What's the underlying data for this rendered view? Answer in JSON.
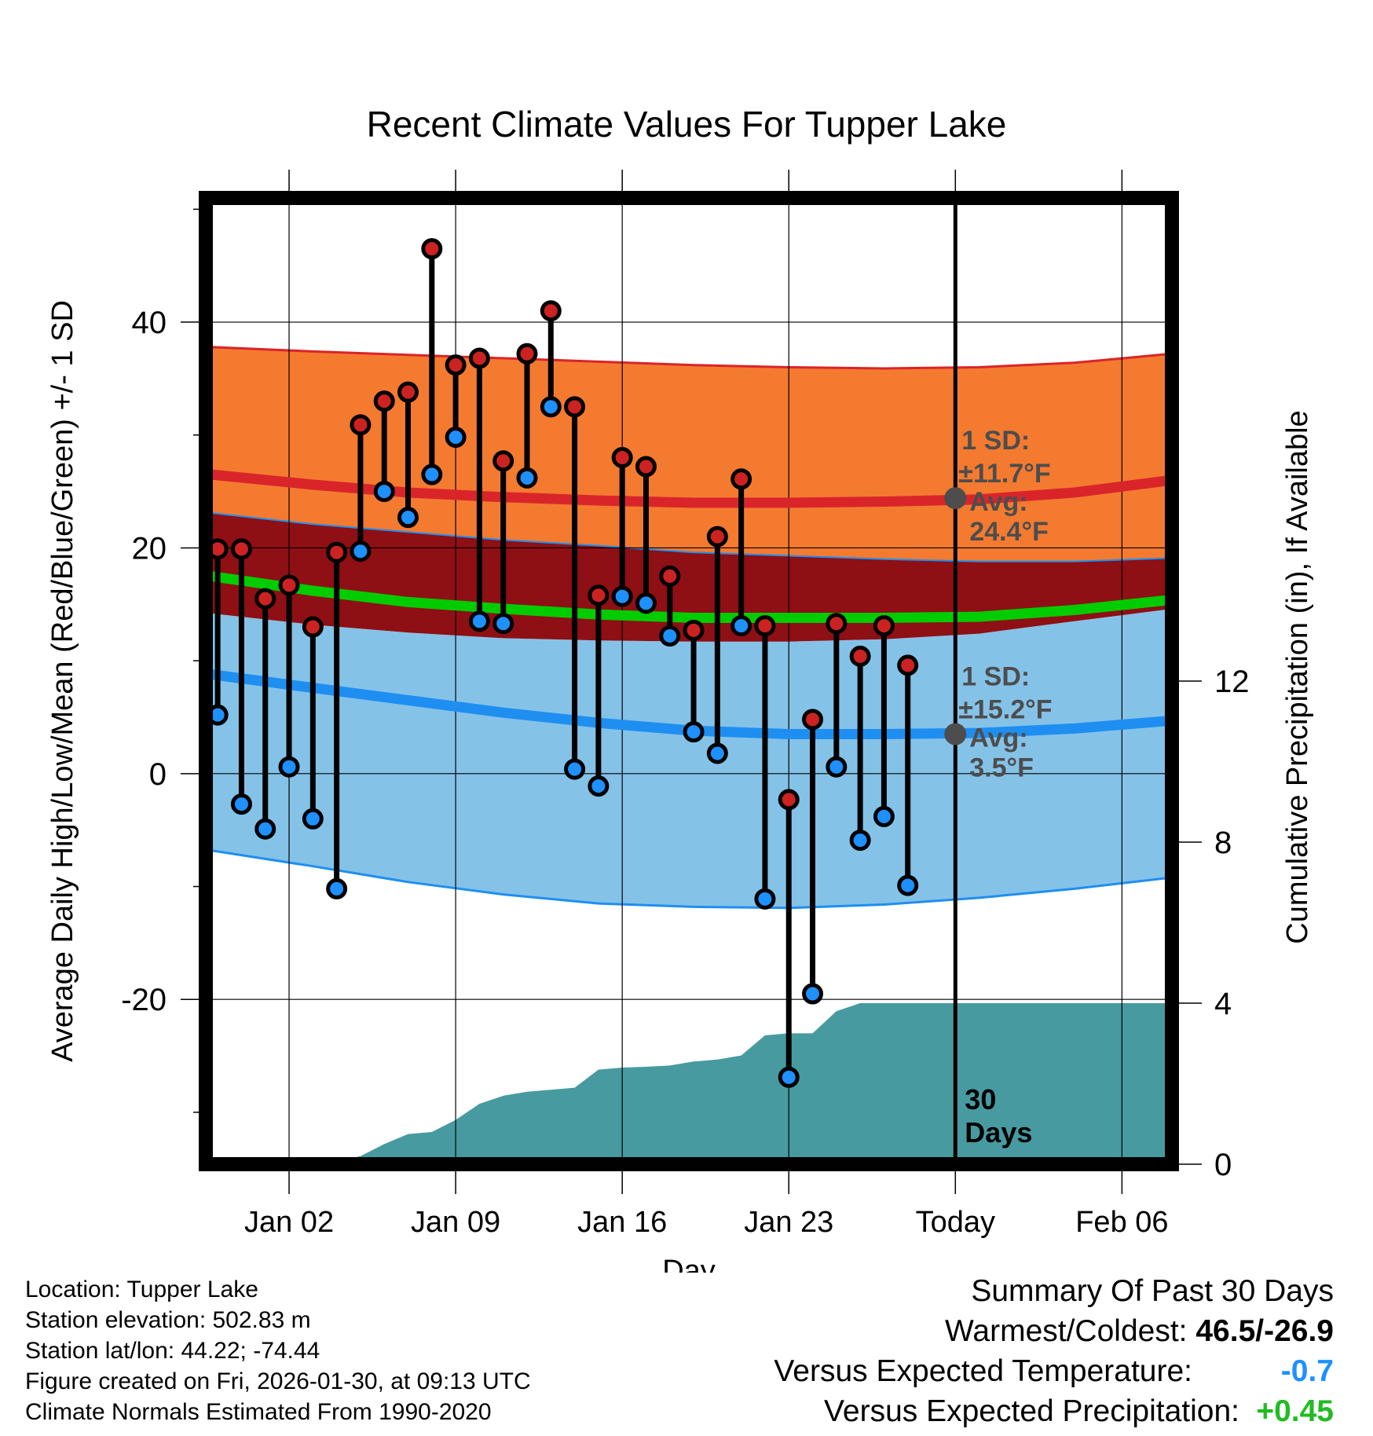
{
  "chart_data": {
    "type": "line",
    "title": "Recent Climate Values For Tupper Lake",
    "xlabel": "Day",
    "ylabel": "Average Daily High/Low/Mean (Red/Blue/Green) +/- 1 SD",
    "y2label": "Cumulative Precipitation (in), If Available",
    "xlim": [
      -2.5,
      38.1
    ],
    "ylim": [
      -34.6,
      51.0
    ],
    "y2lim": [
      0,
      24
    ],
    "x_ticks": [
      {
        "x": 1,
        "label": "Jan 02"
      },
      {
        "x": 8,
        "label": "Jan 09"
      },
      {
        "x": 15,
        "label": "Jan 16"
      },
      {
        "x": 22,
        "label": "Jan 23"
      },
      {
        "x": 29,
        "label": "Today"
      },
      {
        "x": 36,
        "label": "Feb 06"
      }
    ],
    "y_ticks": [
      -20,
      0,
      20,
      40
    ],
    "y2_ticks": [
      0,
      4,
      8,
      12
    ],
    "grid": true,
    "today_x": 29,
    "days_label_line1": "30",
    "days_label_line2": "Days",
    "normal_x": [
      -2.3,
      2,
      6,
      10,
      14,
      18,
      22,
      26,
      30,
      34,
      38.1
    ],
    "normal_high": [
      26.5,
      25.6,
      24.9,
      24.5,
      24.2,
      24.0,
      24.0,
      24.1,
      24.3,
      24.9,
      26.0
    ],
    "normal_high_upper": [
      37.8,
      37.4,
      37.1,
      36.8,
      36.5,
      36.2,
      36.0,
      35.9,
      36.0,
      36.4,
      37.2
    ],
    "normal_high_lower": [
      23.1,
      22.1,
      21.4,
      20.7,
      20.2,
      19.6,
      19.3,
      19.0,
      18.8,
      18.8,
      19.1
    ],
    "normal_mean": [
      17.5,
      16.2,
      15.2,
      14.6,
      14.1,
      13.8,
      13.8,
      13.8,
      13.9,
      14.5,
      15.4
    ],
    "normal_low": [
      8.8,
      7.6,
      6.5,
      5.4,
      4.5,
      3.8,
      3.5,
      3.5,
      3.6,
      4.0,
      4.7
    ],
    "normal_low_upper": [
      14.2,
      13.2,
      12.5,
      12.0,
      11.8,
      11.7,
      11.7,
      11.9,
      12.4,
      13.5,
      14.6
    ],
    "normal_low_lower": [
      -6.8,
      -8.2,
      -9.6,
      -10.7,
      -11.5,
      -11.8,
      -11.9,
      -11.6,
      -11.0,
      -10.2,
      -9.2
    ],
    "high_annotation": {
      "line1": "1 SD:",
      "line2": "±11.7°F",
      "line3": "Avg:",
      "line4": "24.4°F",
      "avg": 24.4
    },
    "low_annotation": {
      "line1": "1 SD:",
      "line2": "±15.2°F",
      "line3": "Avg:",
      "line4": "3.5°F",
      "avg": 3.5
    },
    "daily_x": [
      -2,
      -1,
      0,
      1,
      2,
      3,
      4,
      5,
      6,
      7,
      8,
      9,
      10,
      11,
      12,
      13,
      14,
      15,
      16,
      17,
      18,
      19,
      20,
      21,
      22,
      23,
      24,
      25,
      26,
      27,
      28
    ],
    "daily_high": [
      19.9,
      19.9,
      15.5,
      16.7,
      13.0,
      19.6,
      30.9,
      33.0,
      33.8,
      46.5,
      36.2,
      36.8,
      27.7,
      37.2,
      41.0,
      32.5,
      15.8,
      28.0,
      27.2,
      17.5,
      12.7,
      21.0,
      26.1,
      13.1,
      -2.3,
      4.8,
      13.3,
      10.4,
      13.1,
      9.6,
      null
    ],
    "daily_low": [
      5.2,
      -2.7,
      -4.9,
      0.6,
      -4.0,
      -10.2,
      19.7,
      25.0,
      22.7,
      26.5,
      29.8,
      13.5,
      13.3,
      26.2,
      32.5,
      0.4,
      -1.1,
      15.7,
      15.1,
      12.2,
      3.7,
      1.8,
      13.1,
      -11.1,
      -26.9,
      -19.5,
      0.6,
      -5.9,
      -3.8,
      -9.9,
      null
    ],
    "precip_x": [
      -2.3,
      0,
      1,
      2,
      3,
      4,
      5,
      6,
      7,
      8,
      9,
      10,
      11,
      12,
      13,
      14,
      15,
      16,
      17,
      18,
      19,
      20,
      21,
      22,
      23,
      24,
      25,
      26,
      27,
      28,
      29,
      30,
      38.1
    ],
    "precip": [
      0,
      0,
      0,
      0,
      0.05,
      0.2,
      0.5,
      0.75,
      0.8,
      1.1,
      1.5,
      1.7,
      1.8,
      1.85,
      1.9,
      2.35,
      2.4,
      2.42,
      2.45,
      2.55,
      2.6,
      2.7,
      3.2,
      3.25,
      3.25,
      3.8,
      4.0,
      4.0,
      4.0,
      4.0,
      4.0,
      4.0,
      4.0
    ]
  },
  "footer_left": {
    "location": "Location: Tupper Lake",
    "elevation": "Station elevation: 502.83 m",
    "latlon": "Station lat/lon: 44.22; -74.44",
    "created": "Figure created on Fri, 2026-01-30, at 09:13 UTC",
    "normals": "Climate Normals Estimated From 1990-2020"
  },
  "summary": {
    "title": "Summary Of Past 30 Days",
    "warmest_label": "Warmest/Coldest:",
    "warmest_value": "46.5/-26.9",
    "temp_label": "Versus Expected Temperature:",
    "temp_value": "-0.7",
    "temp_color": "#1e90ff",
    "precip_label": "Versus Expected Precipitation:",
    "precip_value": "+0.45",
    "precip_color": "#22bb22"
  },
  "colors": {
    "high_band": "#f47a30",
    "high_line": "#d9252a",
    "overlap": "#8e0f14",
    "mean_line": "#00cc00",
    "low_band": "#85c2e8",
    "low_line": "#1e8ff0",
    "precip": "#479aa0",
    "high_dot": "#cc2222",
    "low_dot": "#1e90ff",
    "annotation": "#4d4d4d"
  }
}
